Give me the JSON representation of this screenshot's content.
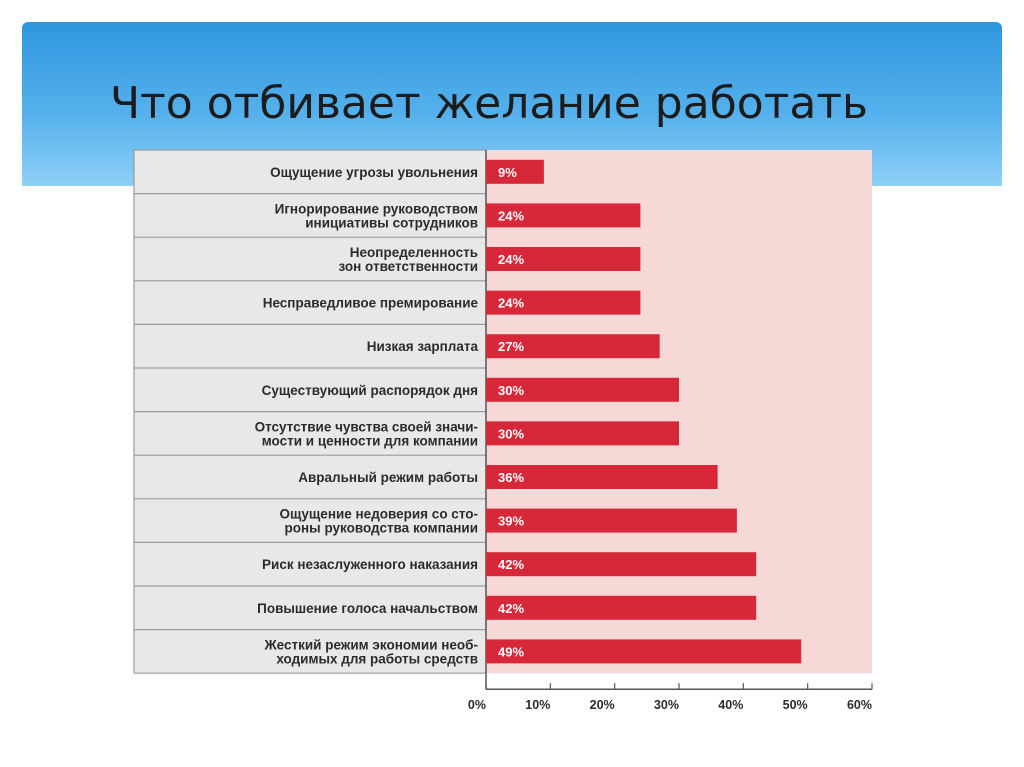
{
  "slide": {
    "title": "Что отбивает желание работать"
  },
  "colors": {
    "header_top": "#2f96dd",
    "header_bottom": "#8ed0f7",
    "bar": "#d62839",
    "plot_bg": "#f6d8d6",
    "label_panel": "#e8e8e8"
  },
  "chart_data": {
    "type": "bar",
    "orientation": "horizontal",
    "title": "",
    "xlabel": "",
    "ylabel": "",
    "xlim": [
      0,
      60
    ],
    "x_ticks": [
      "0%",
      "10%",
      "20%",
      "30%",
      "40%",
      "50%",
      "60%"
    ],
    "categories": [
      [
        "Ощущение угрозы увольнения"
      ],
      [
        "Игнорирование руководством",
        "инициативы сотрудников"
      ],
      [
        "Неопределенность",
        "зон ответственности"
      ],
      [
        "Несправедливое премирование"
      ],
      [
        "Низкая зарплата"
      ],
      [
        "Существующий распорядок дня"
      ],
      [
        "Отсутствие чувства своей значи-",
        "мости и ценности для компании"
      ],
      [
        "Авральный режим работы"
      ],
      [
        "Ощущение недоверия со сто-",
        "роны руководства компании"
      ],
      [
        "Риск незаслуженного наказания"
      ],
      [
        "Повышение голоса начальством"
      ],
      [
        "Жесткий режим экономии необ-",
        "ходимых для работы средств"
      ]
    ],
    "values": [
      9,
      24,
      24,
      24,
      27,
      30,
      30,
      36,
      39,
      42,
      42,
      49
    ],
    "value_labels": [
      "9%",
      "24%",
      "24%",
      "24%",
      "27%",
      "30%",
      "30%",
      "36%",
      "39%",
      "42%",
      "42%",
      "49%"
    ],
    "grid": false,
    "legend": false
  }
}
